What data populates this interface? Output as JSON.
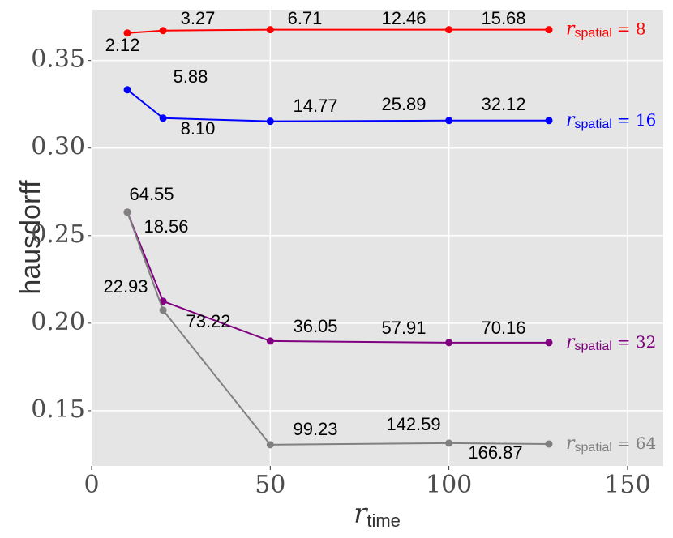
{
  "chart_data": {
    "type": "line",
    "y_label": "hausdorff",
    "x_label_parts": [
      "r",
      "time"
    ],
    "x": [
      10,
      20,
      50,
      100,
      128
    ],
    "xlim": [
      0,
      160
    ],
    "xticks": [
      0,
      50,
      100,
      150
    ],
    "ylim": [
      0.1185,
      0.379
    ],
    "yticks": [
      0.15,
      {
        "value": 0.2,
        "label": "0.20"
      },
      0.25,
      {
        "value": 0.3,
        "label": "0.30"
      },
      0.35
    ],
    "grid": true,
    "series": [
      {
        "name_parts": [
          "r",
          "spatial",
          "= 8"
        ],
        "color": "#ff0000",
        "values": [
          0.3657,
          0.3671,
          0.3676,
          0.3676,
          0.3676
        ],
        "point_labels": [
          "2.12",
          "3.27",
          "6.71",
          "12.46",
          "15.68"
        ]
      },
      {
        "name_parts": [
          "r",
          "spatial",
          "= 16"
        ],
        "color": "#0000ff",
        "values": [
          0.3333,
          0.3171,
          0.3153,
          0.3157,
          0.3157
        ],
        "point_labels": [
          "5.88",
          "8.10",
          "14.77",
          "25.89",
          "32.12"
        ]
      },
      {
        "name_parts": [
          "r",
          "spatial",
          "= 32"
        ],
        "color": "#800080",
        "values": [
          0.2634,
          0.2125,
          0.1898,
          0.1889,
          0.1889
        ],
        "point_labels": [
          "64.55",
          "18.56",
          "36.05",
          "57.91",
          "70.16"
        ]
      },
      {
        "name_parts": [
          "r",
          "spatial",
          "= 64"
        ],
        "color": "#808080",
        "values": [
          0.2634,
          0.2074,
          0.1306,
          0.1315,
          0.131
        ],
        "point_labels": [
          "22.93",
          "73.22",
          "99.23",
          "142.59",
          "166.87"
        ]
      }
    ]
  }
}
